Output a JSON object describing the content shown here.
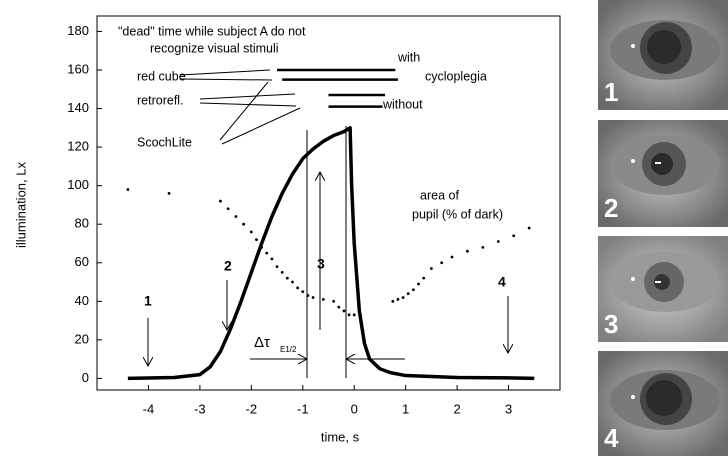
{
  "chart_data": {
    "type": "line",
    "xlabel": "time, s",
    "ylabel": "illumination, Lx",
    "xlim": [
      -5,
      4
    ],
    "ylim": [
      -6,
      188
    ],
    "xticks": [
      -4,
      -3,
      -2,
      -1,
      0,
      1,
      2,
      3
    ],
    "yticks": [
      0,
      20,
      40,
      60,
      80,
      100,
      120,
      140,
      160,
      180
    ],
    "illumination": {
      "color": "#000000",
      "x": [
        -4.4,
        -3.5,
        -3.0,
        -2.8,
        -2.6,
        -2.4,
        -2.2,
        -2.0,
        -1.8,
        -1.6,
        -1.4,
        -1.2,
        -1.0,
        -0.8,
        -0.6,
        -0.4,
        -0.2,
        -0.08,
        -0.05,
        0.0,
        0.1,
        0.2,
        0.3,
        0.5,
        0.7,
        1.0,
        1.5,
        2.0,
        3.0,
        3.5
      ],
      "values": [
        0,
        0.5,
        2,
        6,
        14,
        26,
        40,
        55,
        70,
        84,
        96,
        106,
        114,
        119,
        123,
        126,
        128,
        130,
        100,
        70,
        35,
        18,
        10,
        5,
        3,
        1.5,
        1,
        0.5,
        0.3,
        0
      ]
    },
    "pupil_area": {
      "color": "#000000",
      "x": [
        -4.4,
        -3.6,
        -2.6,
        -2.45,
        -2.3,
        -2.15,
        -2.0,
        -1.9,
        -1.8,
        -1.7,
        -1.6,
        -1.5,
        -1.4,
        -1.3,
        -1.2,
        -1.1,
        -1.0,
        -0.9,
        -0.8,
        -0.6,
        -0.4,
        -0.3,
        -0.2,
        -0.1,
        0.0,
        0.1,
        0.75,
        0.85,
        0.95,
        1.05,
        1.15,
        1.25,
        1.35,
        1.5,
        1.7,
        1.9,
        2.2,
        2.5,
        2.8,
        3.1,
        3.4
      ],
      "values": [
        98,
        96,
        92,
        88,
        84,
        80,
        76,
        72,
        68,
        65,
        62,
        58,
        55,
        52,
        50,
        47,
        45,
        43,
        42,
        41,
        40,
        37,
        35,
        33,
        33,
        34,
        40,
        41,
        42,
        44,
        46,
        49,
        52,
        57,
        60,
        63,
        66,
        68,
        71,
        74,
        78
      ]
    },
    "dead_time_bars": [
      {
        "start": -1.5,
        "end": 0.8,
        "value": 160
      },
      {
        "start": -1.4,
        "end": 0.85,
        "value": 155
      },
      {
        "start": -0.5,
        "end": 0.6,
        "value": 147
      },
      {
        "start": -0.5,
        "end": 0.55,
        "value": 141
      }
    ],
    "annotations": {
      "dead_time_1": "\"dead\" time while subject A do not",
      "dead_time_2": "recognize visual stimuli",
      "with": "with",
      "cycloplegia": "cycloplegia",
      "red_cube": "red cube",
      "retrorefl": "retrorefl.",
      "without": "without",
      "scochlite": "ScochLite",
      "area_1": "area of",
      "area_2": "pupil (% of dark)",
      "arrow_1": "1",
      "arrow_2": "2",
      "arrow_3": "3",
      "arrow_4": "4",
      "delta_tau": "Δτ",
      "delta_tau_sub": "E1/2"
    },
    "photos": [
      {
        "label": "1"
      },
      {
        "label": "2"
      },
      {
        "label": "3"
      },
      {
        "label": "4"
      }
    ]
  }
}
